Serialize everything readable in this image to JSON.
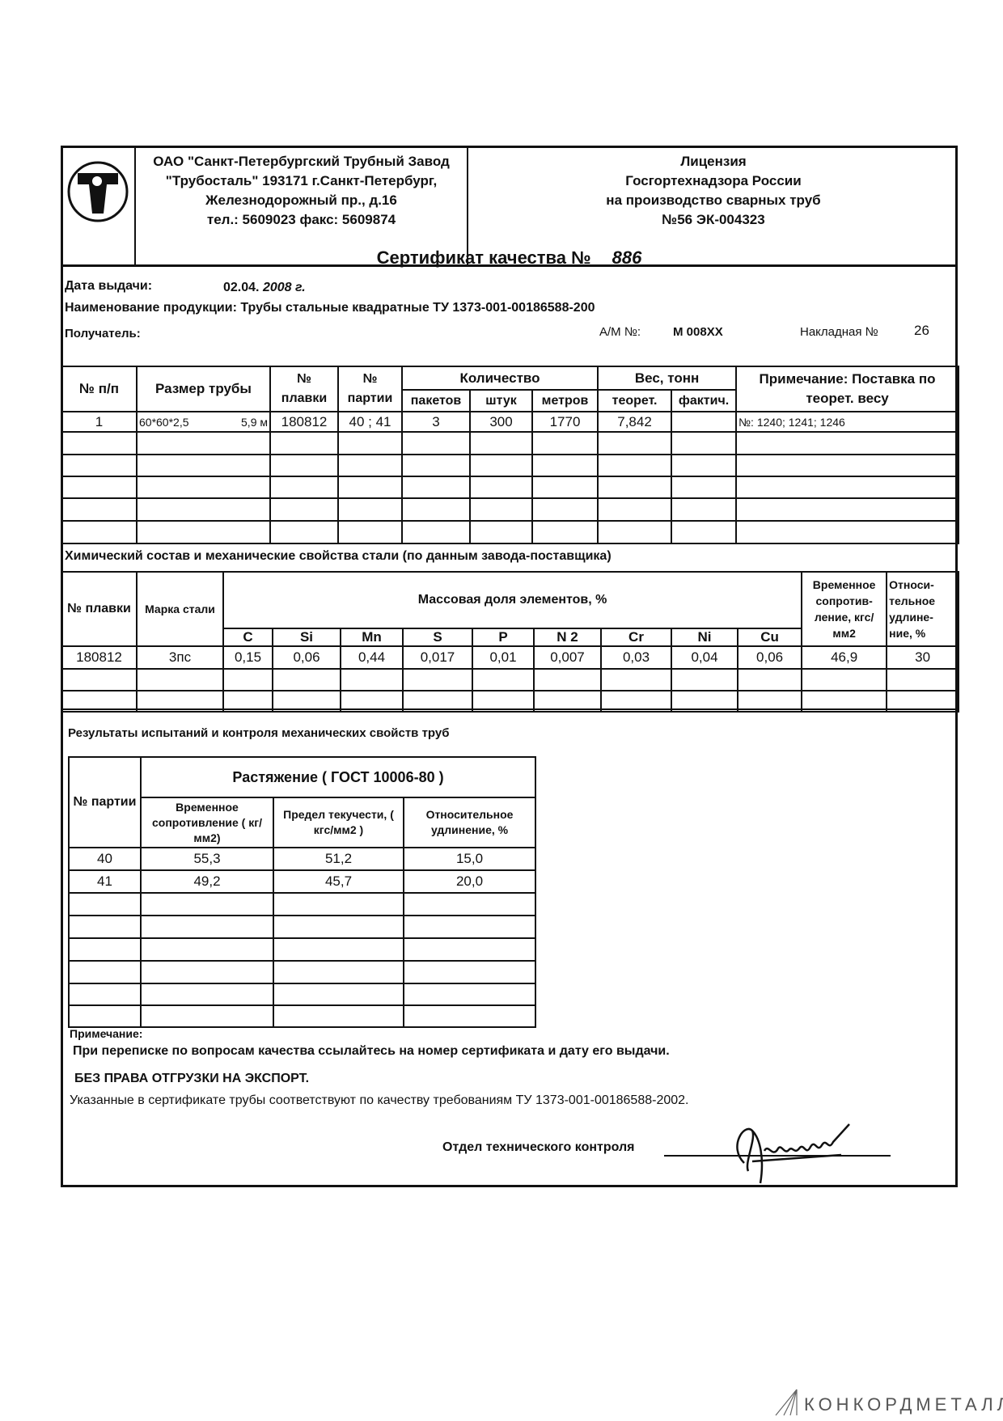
{
  "header": {
    "company_lines": [
      "ОАО \"Санкт-Петербургский Трубный Завод",
      "\"Трубосталь\"   193171   г.Санкт-Петербург,",
      "Железнодорожный пр., д.16",
      "тел.: 5609023     факс: 5609874"
    ],
    "license_lines": [
      "Лицензия",
      "Госгортехнадзора России",
      "на производство сварных труб",
      "№56     ЭК-004323"
    ],
    "logo_letters": "ТС"
  },
  "certificate": {
    "title": "Сертификат качества №",
    "number": "886",
    "issue_date_label": "Дата выдачи:",
    "issue_date": "02.04.",
    "issue_year": "2008 г.",
    "product_label": "Наименование продукции:",
    "product": "Трубы стальные квадратные ТУ 1373-001-00186588-200",
    "recipient_label": "Получатель:",
    "am_label": "А/М №:",
    "am_value": "М 008ХХ",
    "invoice_label": "Накладная №",
    "invoice_value": "26"
  },
  "shipment_table": {
    "headers": {
      "num": "№ п/п",
      "size": "Размер трубы",
      "heat": "№ плавки",
      "batch": "№ партии",
      "quantity": "Количество",
      "packages": "пакетов",
      "pieces": "штук",
      "meters": "метров",
      "weight": "Вес, тонн",
      "theor": "теорет.",
      "actual": "фактич.",
      "note": "Примечание: Поставка по теорет. весу"
    },
    "rows": [
      {
        "num": "1",
        "size": "60*60*2,5",
        "length": "5,9 м",
        "heat": "180812",
        "batch": "40 ; 41",
        "packages": "3",
        "pieces": "300",
        "meters": "1770",
        "theor": "7,842",
        "actual": "",
        "note": "№: 1240; 1241; 1246"
      }
    ]
  },
  "chem_section": {
    "title": "Химический состав и механические свойства стали (по данным завода-поставщика)",
    "headers": {
      "heat": "№ плавки",
      "grade": "Марка стали",
      "mass": "Массовая доля элементов, %",
      "elements": [
        "C",
        "Si",
        "Mn",
        "S",
        "P",
        "N 2",
        "Cr",
        "Ni",
        "Cu"
      ],
      "strength": "Временное сопротив-ление, кгс/мм2",
      "elongation": "Относи-тельное удлине-ние, %"
    },
    "rows": [
      {
        "heat": "180812",
        "grade": "3пс",
        "values": [
          "0,15",
          "0,06",
          "0,44",
          "0,017",
          "0,01",
          "0,007",
          "0,03",
          "0,04",
          "0,06"
        ],
        "strength": "46,9",
        "elongation": "30"
      }
    ]
  },
  "test_section": {
    "title": "Результаты испытаний  и контроля механических свойств труб",
    "headers": {
      "batch": "№ партии",
      "tension": "Растяжение   ( ГОСТ 10006-80 )",
      "strength": "Временное сопротивление ( кг/мм2)",
      "yield": "Предел текучести, ( кгс/мм2 )",
      "elongation": "Относительное удлинение, %"
    },
    "rows": [
      {
        "batch": "40",
        "strength": "55,3",
        "yield": "51,2",
        "elongation": "15,0"
      },
      {
        "batch": "41",
        "strength": "49,2",
        "yield": "45,7",
        "elongation": "20,0"
      }
    ]
  },
  "notes": {
    "label": "Примечание:",
    "line1": "При переписке по вопросам качества ссылайтесь на номер сертификата и дату его выдачи.",
    "line2": "БЕЗ ПРАВА ОТГРУЗКИ НА ЭКСПОРТ.",
    "line3": "Указанные в сертификате трубы соответствуют по  качеству требованиям ТУ 1373-001-00186588-2002.",
    "otk_label": "Отдел технического контроля"
  },
  "watermark": {
    "brand": "КОНКОРДМЕТАЛЛ"
  }
}
